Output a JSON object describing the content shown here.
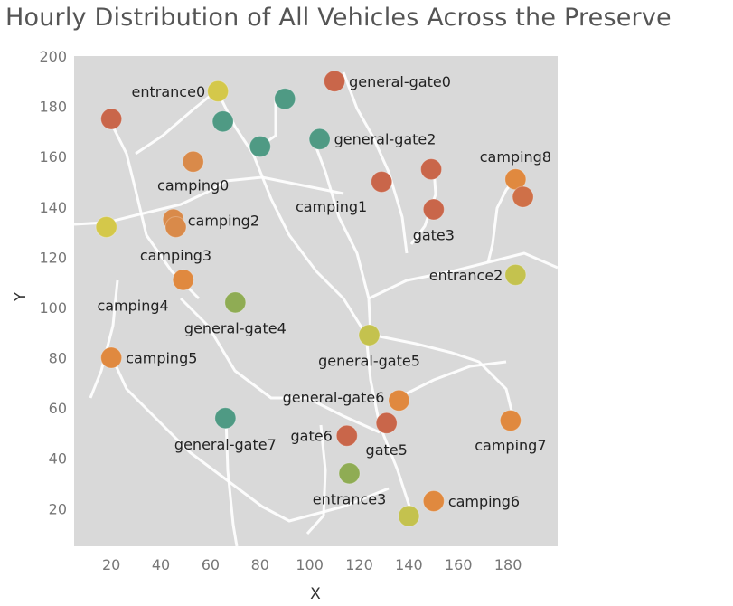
{
  "chart_data": {
    "type": "scatter",
    "title": "Hourly Distribution of All Vehicles Across the Preserve",
    "xlabel": "X",
    "ylabel": "Y",
    "xlim": [
      5,
      200
    ],
    "ylim": [
      5,
      200
    ],
    "x_ticks": [
      20,
      40,
      60,
      80,
      100,
      120,
      140,
      160,
      180
    ],
    "y_ticks": [
      20,
      40,
      60,
      80,
      100,
      120,
      140,
      160,
      180,
      200
    ],
    "background": "preserve road map",
    "points": [
      {
        "label": "entrance0",
        "x": 63,
        "y": 186,
        "color": "#d4c84a"
      },
      {
        "label": "",
        "x": 20,
        "y": 175,
        "color": "#c9664a"
      },
      {
        "label": "",
        "x": 65,
        "y": 174,
        "color": "#4f9a84"
      },
      {
        "label": "",
        "x": 90,
        "y": 183,
        "color": "#4f9a84"
      },
      {
        "label": "",
        "x": 80,
        "y": 164,
        "color": "#4f9a84"
      },
      {
        "label": "general-gate0",
        "x": 110,
        "y": 190,
        "color": "#c9664a"
      },
      {
        "label": "general-gate2",
        "x": 104,
        "y": 167,
        "color": "#4f9a84"
      },
      {
        "label": "camping0",
        "x": 53,
        "y": 158,
        "color": "#d98a4a"
      },
      {
        "label": "camping1",
        "x": 129,
        "y": 150,
        "color": "#c9664a"
      },
      {
        "label": "",
        "x": 149,
        "y": 155,
        "color": "#c9664a"
      },
      {
        "label": "gate3",
        "x": 150,
        "y": 139,
        "color": "#c9664a"
      },
      {
        "label": "camping8",
        "x": 183,
        "y": 151,
        "color": "#e0893f"
      },
      {
        "label": "",
        "x": 186,
        "y": 144,
        "color": "#cf7048"
      },
      {
        "label": "",
        "x": 18,
        "y": 132,
        "color": "#d4c84a"
      },
      {
        "label": "camping2",
        "x": 45,
        "y": 135,
        "color": "#d98a4a"
      },
      {
        "label": "camping3",
        "x": 46,
        "y": 132,
        "color": "#d98a4a"
      },
      {
        "label": "entrance2",
        "x": 183,
        "y": 113,
        "color": "#c4c24e"
      },
      {
        "label": "camping4",
        "x": 49,
        "y": 111,
        "color": "#e0893f"
      },
      {
        "label": "general-gate4",
        "x": 70,
        "y": 102,
        "color": "#8fac54"
      },
      {
        "label": "general-gate5",
        "x": 124,
        "y": 89,
        "color": "#c4c24e"
      },
      {
        "label": "camping5",
        "x": 20,
        "y": 80,
        "color": "#e0893f"
      },
      {
        "label": "general-gate6",
        "x": 136,
        "y": 63,
        "color": "#e0893f"
      },
      {
        "label": "camping7",
        "x": 181,
        "y": 55,
        "color": "#e0893f"
      },
      {
        "label": "general-gate7",
        "x": 66,
        "y": 56,
        "color": "#4f9a84"
      },
      {
        "label": "gate6",
        "x": 115,
        "y": 49,
        "color": "#c9664a"
      },
      {
        "label": "gate5",
        "x": 131,
        "y": 54,
        "color": "#c9664a"
      },
      {
        "label": "entrance3",
        "x": 116,
        "y": 34,
        "color": "#8fac54"
      },
      {
        "label": "camping6",
        "x": 150,
        "y": 23,
        "color": "#e0893f"
      },
      {
        "label": "",
        "x": 140,
        "y": 17,
        "color": "#c4c24e"
      }
    ]
  }
}
